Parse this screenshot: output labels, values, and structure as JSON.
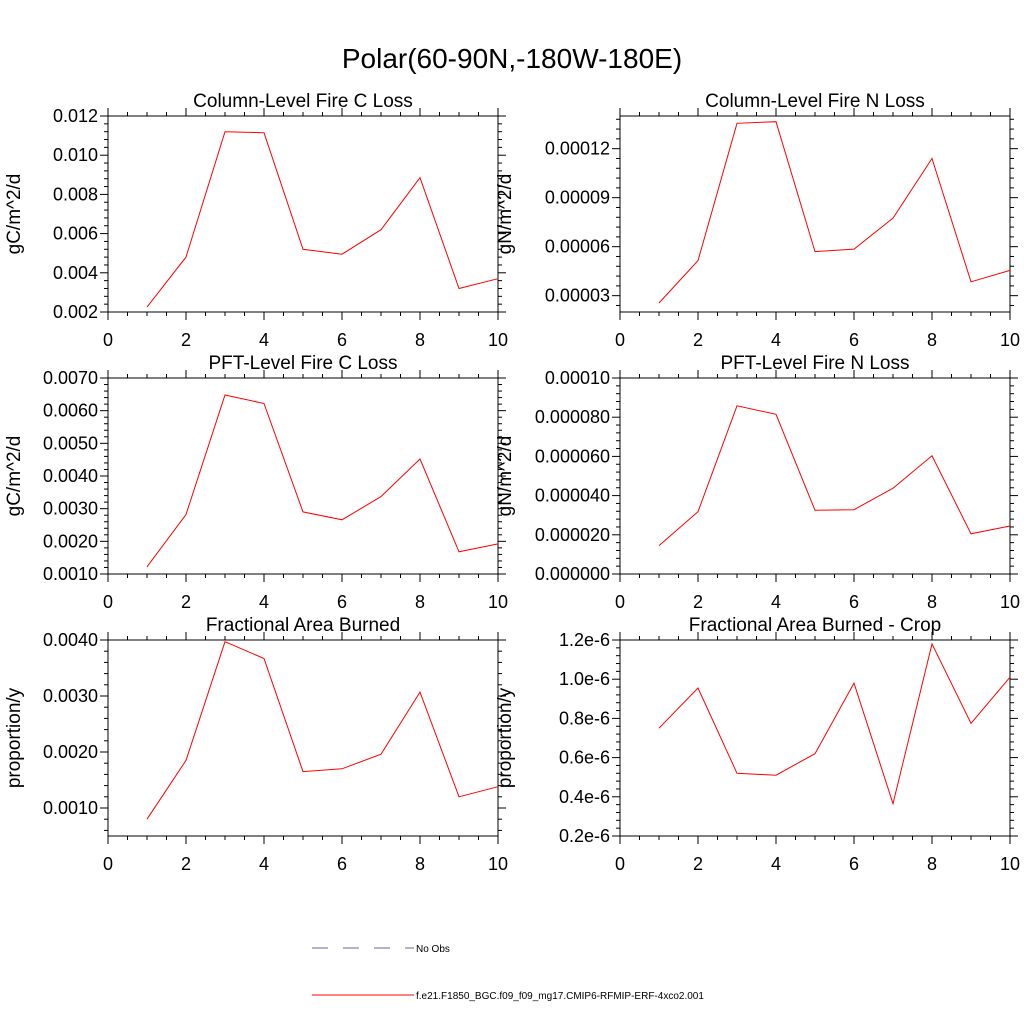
{
  "page_title": "Polar(60-90N,-180W-180E)",
  "legend": {
    "items": [
      {
        "label": "No Obs",
        "color": "#6666aa",
        "dash": "dashed"
      },
      {
        "label": "f.e21.F1850_BGC.f09_f09_mg17.CMIP6-RFMIP-ERF-4xco2.001",
        "color": "#ff0000",
        "dash": "solid"
      }
    ]
  },
  "chart_data": [
    {
      "type": "line",
      "title": "Column-Level Fire C Loss",
      "xlabel": "",
      "ylabel": "gC/m^2/d",
      "xlim": [
        0,
        10
      ],
      "ylim": [
        0.002,
        0.012
      ],
      "xticks": [
        0,
        2,
        4,
        6,
        8,
        10
      ],
      "xtick_labels": [
        "0",
        "2",
        "4",
        "6",
        "8",
        "10"
      ],
      "yticks": [
        0.002,
        0.004,
        0.006,
        0.008,
        0.01,
        0.012
      ],
      "ytick_labels": [
        "0.002",
        "0.004",
        "0.006",
        "0.008",
        "0.010",
        "0.012"
      ],
      "series": [
        {
          "name": "f.e21.F1850_BGC.f09_f09_mg17.CMIP6-RFMIP-ERF-4xco2.001",
          "x": [
            1,
            2,
            3,
            4,
            5,
            6,
            7,
            8,
            9,
            10
          ],
          "values": [
            0.00225,
            0.0048,
            0.0112,
            0.01115,
            0.0052,
            0.00495,
            0.0062,
            0.00885,
            0.0032,
            0.0037
          ]
        }
      ]
    },
    {
      "type": "line",
      "title": "Column-Level Fire N Loss",
      "xlabel": "",
      "ylabel": "gN/m^2/d",
      "xlim": [
        0,
        10
      ],
      "ylim": [
        2e-05,
        0.00014
      ],
      "xticks": [
        0,
        2,
        4,
        6,
        8,
        10
      ],
      "xtick_labels": [
        "0",
        "2",
        "4",
        "6",
        "8",
        "10"
      ],
      "yticks": [
        3e-05,
        6e-05,
        9e-05,
        0.00012
      ],
      "ytick_labels": [
        "0.00003",
        "0.00006",
        "0.00009",
        "0.00012"
      ],
      "series": [
        {
          "name": "f.e21.F1850_BGC.f09_f09_mg17.CMIP6-RFMIP-ERF-4xco2.001",
          "x": [
            1,
            2,
            3,
            4,
            5,
            6,
            7,
            8,
            9,
            10
          ],
          "values": [
            2.55e-05,
            5.15e-05,
            0.0001355,
            0.0001365,
            5.7e-05,
            5.85e-05,
            7.75e-05,
            0.000114,
            3.85e-05,
            4.55e-05
          ]
        }
      ]
    },
    {
      "type": "line",
      "title": "PFT-Level Fire C Loss",
      "xlabel": "",
      "ylabel": "gC/m^2/d",
      "xlim": [
        0,
        10
      ],
      "ylim": [
        0.001,
        0.007
      ],
      "xticks": [
        0,
        2,
        4,
        6,
        8,
        10
      ],
      "xtick_labels": [
        "0",
        "2",
        "4",
        "6",
        "8",
        "10"
      ],
      "yticks": [
        0.001,
        0.002,
        0.003,
        0.004,
        0.005,
        0.006,
        0.007
      ],
      "ytick_labels": [
        "0.0010",
        "0.0020",
        "0.0030",
        "0.0040",
        "0.0050",
        "0.0060",
        "0.0070"
      ],
      "series": [
        {
          "name": "f.e21.F1850_BGC.f09_f09_mg17.CMIP6-RFMIP-ERF-4xco2.001",
          "x": [
            1,
            2,
            3,
            4,
            5,
            6,
            7,
            8,
            9,
            10
          ],
          "values": [
            0.00122,
            0.00282,
            0.00648,
            0.00622,
            0.0029,
            0.00266,
            0.00337,
            0.00452,
            0.00168,
            0.00192
          ]
        }
      ]
    },
    {
      "type": "line",
      "title": "PFT-Level Fire N Loss",
      "xlabel": "",
      "ylabel": "gN/m^2/d",
      "xlim": [
        0,
        10
      ],
      "ylim": [
        0.0,
        0.0001
      ],
      "xticks": [
        0,
        2,
        4,
        6,
        8,
        10
      ],
      "xtick_labels": [
        "0",
        "2",
        "4",
        "6",
        "8",
        "10"
      ],
      "yticks": [
        0.0,
        2e-05,
        4e-05,
        6e-05,
        8e-05,
        0.0001
      ],
      "ytick_labels": [
        "0.000000",
        "0.000020",
        "0.000040",
        "0.000060",
        "0.000080",
        "0.00010"
      ],
      "series": [
        {
          "name": "f.e21.F1850_BGC.f09_f09_mg17.CMIP6-RFMIP-ERF-4xco2.001",
          "x": [
            1,
            2,
            3,
            4,
            5,
            6,
            7,
            8,
            9,
            10
          ],
          "values": [
            1.45e-05,
            3.18e-05,
            8.58e-05,
            8.15e-05,
            3.25e-05,
            3.28e-05,
            4.38e-05,
            6.03e-05,
            2.05e-05,
            2.45e-05
          ]
        }
      ]
    },
    {
      "type": "line",
      "title": "Fractional Area Burned",
      "xlabel": "",
      "ylabel": "proportion/y",
      "xlim": [
        0,
        10
      ],
      "ylim": [
        0.0005,
        0.004
      ],
      "xticks": [
        0,
        2,
        4,
        6,
        8,
        10
      ],
      "xtick_labels": [
        "0",
        "2",
        "4",
        "6",
        "8",
        "10"
      ],
      "yticks": [
        0.001,
        0.002,
        0.003,
        0.004
      ],
      "ytick_labels": [
        "0.0010",
        "0.0020",
        "0.0030",
        "0.0040"
      ],
      "series": [
        {
          "name": "f.e21.F1850_BGC.f09_f09_mg17.CMIP6-RFMIP-ERF-4xco2.001",
          "x": [
            1,
            2,
            3,
            4,
            5,
            6,
            7,
            8,
            9,
            10
          ],
          "values": [
            0.0008,
            0.00185,
            0.00397,
            0.00367,
            0.00165,
            0.0017,
            0.00196,
            0.00307,
            0.0012,
            0.00138
          ]
        }
      ]
    },
    {
      "type": "line",
      "title": "Fractional Area Burned - Crop",
      "xlabel": "",
      "ylabel": "proportion/y",
      "xlim": [
        0,
        10
      ],
      "ylim": [
        2e-07,
        1.2e-06
      ],
      "xticks": [
        0,
        2,
        4,
        6,
        8,
        10
      ],
      "xtick_labels": [
        "0",
        "2",
        "4",
        "6",
        "8",
        "10"
      ],
      "yticks": [
        2e-07,
        4e-07,
        6e-07,
        8e-07,
        1e-06,
        1.2e-06
      ],
      "ytick_labels": [
        "0.2e-6",
        "0.4e-6",
        "0.6e-6",
        "0.8e-6",
        "1.0e-6",
        "1.2e-6"
      ],
      "series": [
        {
          "name": "f.e21.F1850_BGC.f09_f09_mg17.CMIP6-RFMIP-ERF-4xco2.001",
          "x": [
            1,
            2,
            3,
            4,
            5,
            6,
            7,
            8,
            9,
            10
          ],
          "values": [
            7.5e-07,
            9.55e-07,
            5.2e-07,
            5.1e-07,
            6.2e-07,
            9.8e-07,
            3.65e-07,
            1.18e-06,
            7.75e-07,
            1.01e-06
          ]
        }
      ]
    }
  ]
}
